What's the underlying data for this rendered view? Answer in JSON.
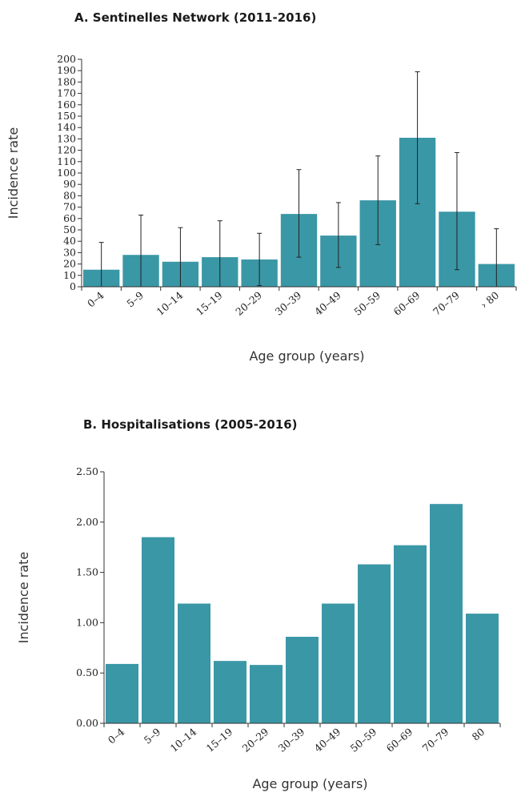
{
  "chart_data": [
    {
      "type": "bar",
      "title": "A. Sentinelles Network (2011-2016)",
      "xlabel": "Age group (years)",
      "ylabel": "Incidence rate",
      "categories": [
        "0–4",
        "5–9",
        "10–14",
        "15–19",
        "20–29",
        "30–39",
        "40–49",
        "50–59",
        "60–69",
        "70–79",
        "› 80"
      ],
      "values": [
        15,
        28,
        22,
        26,
        24,
        64,
        45,
        76,
        131,
        66,
        20
      ],
      "error_low": [
        0,
        0,
        0,
        0,
        1,
        26,
        17,
        37,
        73,
        15,
        0
      ],
      "error_high": [
        39,
        63,
        52,
        58,
        47,
        103,
        74,
        115,
        189,
        118,
        51
      ],
      "ylim": [
        0,
        200
      ],
      "yticks": [
        "0",
        "10",
        "20",
        "30",
        "40",
        "50",
        "60",
        "70",
        "80",
        "90",
        "100",
        "110",
        "120",
        "130",
        "140",
        "150",
        "160",
        "170",
        "180",
        "190",
        "200"
      ],
      "bar_color": "#3a97a6",
      "grid": false
    },
    {
      "type": "bar",
      "title": "B. Hospitalisations (2005-2016)",
      "xlabel": "Age group (years)",
      "ylabel": "Incidence rate",
      "categories": [
        "0–4",
        "5–9",
        "10–14",
        "15–19",
        "20–29",
        "30–39",
        "40–49",
        "50–59",
        "60–69",
        "70–79",
        "80"
      ],
      "values": [
        0.59,
        1.85,
        1.19,
        0.62,
        0.58,
        0.86,
        1.19,
        1.58,
        1.77,
        2.18,
        1.09
      ],
      "ylim": [
        0,
        2.5
      ],
      "yticks": [
        "0.00",
        "0.50",
        "1.00",
        "1.50",
        "2.00",
        "2.50"
      ],
      "bar_color": "#3a97a6",
      "grid": false
    }
  ]
}
